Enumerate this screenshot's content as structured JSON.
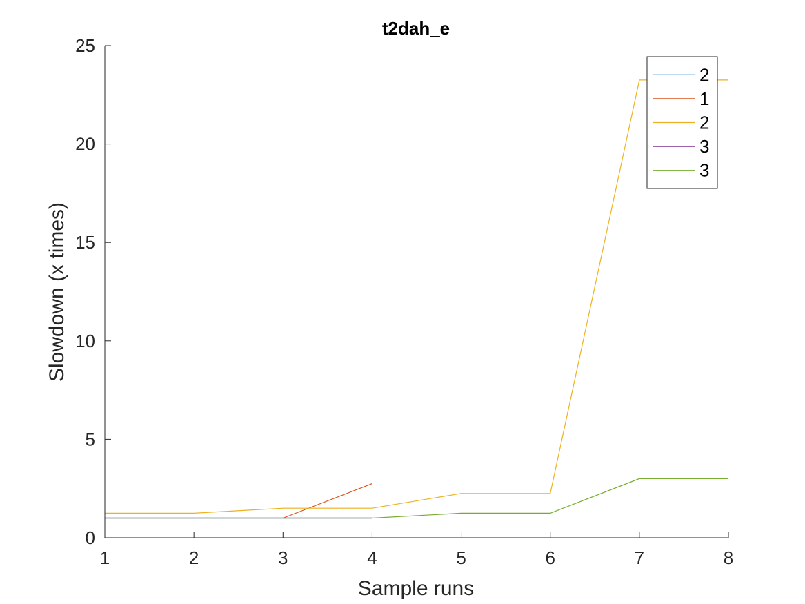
{
  "chart_data": {
    "type": "line",
    "title": "t2dah_e",
    "xlabel": "Sample runs",
    "ylabel": "Slowdown (x times)",
    "xlim": [
      1,
      8
    ],
    "ylim": [
      0,
      25
    ],
    "xticks": [
      "1",
      "2",
      "3",
      "4",
      "5",
      "6",
      "7",
      "8"
    ],
    "yticks": [
      "0",
      "5",
      "10",
      "15",
      "20",
      "25"
    ],
    "grid": false,
    "legend_position": "top-right",
    "series": [
      {
        "name": "2",
        "color": "#0072BD",
        "x": [
          1,
          2,
          3,
          4
        ],
        "y": [
          1,
          1,
          1,
          1
        ]
      },
      {
        "name": "1",
        "color": "#D95319",
        "x": [
          3,
          4
        ],
        "y": [
          1,
          2.75
        ]
      },
      {
        "name": "2",
        "color": "#EDB120",
        "x": [
          1,
          2,
          3,
          4,
          5,
          6,
          7,
          8
        ],
        "y": [
          1.25,
          1.25,
          1.5,
          1.5,
          2.25,
          2.25,
          23.25,
          23.25
        ]
      },
      {
        "name": "3",
        "color": "#7E2F8E",
        "x": [
          1,
          2,
          3,
          4
        ],
        "y": [
          1,
          1,
          1,
          1
        ]
      },
      {
        "name": "3",
        "color": "#77AC30",
        "x": [
          1,
          2,
          3,
          4,
          5,
          6,
          7,
          8
        ],
        "y": [
          1,
          1,
          1,
          1,
          1.25,
          1.25,
          3,
          3
        ]
      }
    ]
  }
}
